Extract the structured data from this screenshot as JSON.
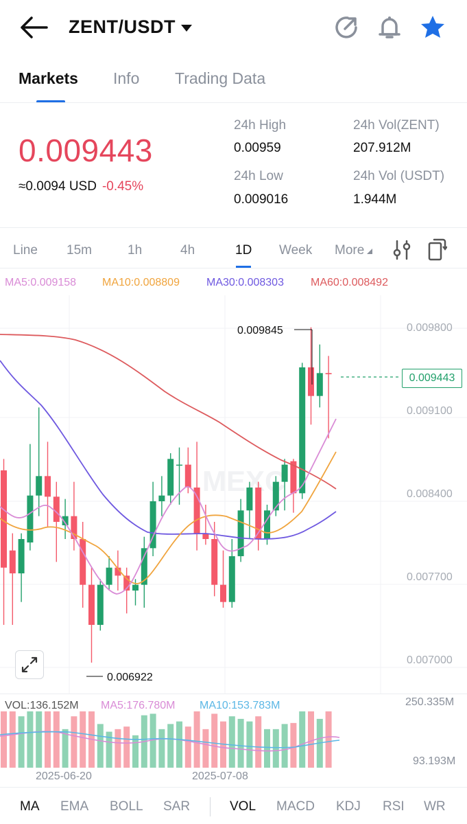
{
  "header": {
    "pair": "ZENT/USDT",
    "icons": [
      "back-arrow-icon",
      "share-icon",
      "bell-icon",
      "star-icon"
    ],
    "star_color": "#1f6fe5"
  },
  "tabs": [
    {
      "label": "Markets",
      "active": true
    },
    {
      "label": "Info",
      "active": false
    },
    {
      "label": "Trading Data",
      "active": false
    }
  ],
  "ticker": {
    "price": "0.009443",
    "usd": "≈0.0094 USD",
    "change": "-0.45%",
    "high_label": "24h High",
    "high": "0.00959",
    "low_label": "24h Low",
    "low": "0.009016",
    "vol_base_label": "24h Vol(ZENT)",
    "vol_base": "207.912M",
    "vol_quote_label": "24h Vol (USDT)",
    "vol_quote": "1.944M"
  },
  "timeframes": [
    "Line",
    "15m",
    "1h",
    "4h",
    "1D",
    "Week",
    "More"
  ],
  "active_timeframe": "1D",
  "ma_legend": {
    "ma5": "MA5:0.009158",
    "ma10": "MA10:0.008809",
    "ma30": "MA30:0.008303",
    "ma60": "MA60:0.008492"
  },
  "colors": {
    "up": "#22a06b",
    "down": "#f4596a",
    "ma5": "#d98bd6",
    "ma10": "#f0a43d",
    "ma30": "#6e58e0",
    "ma60": "#dd5a5d",
    "accent": "#1f6fe5"
  },
  "chart": {
    "price_axis": [
      "0.009800",
      "0.009100",
      "0.008400",
      "0.007700",
      "0.007000"
    ],
    "current_price": "0.009443",
    "max_label": "0.009845",
    "min_label": "0.006922",
    "watermark": "MEXC"
  },
  "chart_data": {
    "type": "candlestick",
    "ylim": [
      0.00665,
      0.01013
    ],
    "grid": true,
    "candles": [
      {
        "o": 0.0086,
        "h": 0.0087,
        "l": 0.00725,
        "c": 0.00775
      },
      {
        "o": 0.0079,
        "h": 0.00805,
        "l": 0.00725,
        "c": 0.0077
      },
      {
        "o": 0.0077,
        "h": 0.00805,
        "l": 0.00745,
        "c": 0.008
      },
      {
        "o": 0.00797,
        "h": 0.00883,
        "l": 0.0079,
        "c": 0.00838
      },
      {
        "o": 0.00838,
        "h": 0.00915,
        "l": 0.0082,
        "c": 0.00855
      },
      {
        "o": 0.00855,
        "h": 0.00885,
        "l": 0.0081,
        "c": 0.00837
      },
      {
        "o": 0.00837,
        "h": 0.0085,
        "l": 0.0078,
        "c": 0.00815
      },
      {
        "o": 0.00812,
        "h": 0.00835,
        "l": 0.008,
        "c": 0.0082
      },
      {
        "o": 0.0082,
        "h": 0.0085,
        "l": 0.0079,
        "c": 0.008
      },
      {
        "o": 0.008,
        "h": 0.00815,
        "l": 0.0074,
        "c": 0.0076
      },
      {
        "o": 0.0076,
        "h": 0.00775,
        "l": 0.00692,
        "c": 0.00725
      },
      {
        "o": 0.00725,
        "h": 0.00765,
        "l": 0.0072,
        "c": 0.0076
      },
      {
        "o": 0.0076,
        "h": 0.00785,
        "l": 0.00755,
        "c": 0.00775
      },
      {
        "o": 0.00775,
        "h": 0.0079,
        "l": 0.00755,
        "c": 0.00768
      },
      {
        "o": 0.00768,
        "h": 0.00775,
        "l": 0.00735,
        "c": 0.00755
      },
      {
        "o": 0.00755,
        "h": 0.00765,
        "l": 0.00742,
        "c": 0.0076
      },
      {
        "o": 0.0076,
        "h": 0.00802,
        "l": 0.0074,
        "c": 0.00792
      },
      {
        "o": 0.00792,
        "h": 0.0085,
        "l": 0.00785,
        "c": 0.00833
      },
      {
        "o": 0.00833,
        "h": 0.00855,
        "l": 0.0082,
        "c": 0.00838
      },
      {
        "o": 0.00838,
        "h": 0.00875,
        "l": 0.0083,
        "c": 0.0087
      },
      {
        "o": 0.00865,
        "h": 0.0088,
        "l": 0.0083,
        "c": 0.00865
      },
      {
        "o": 0.00865,
        "h": 0.0088,
        "l": 0.0084,
        "c": 0.00845
      },
      {
        "o": 0.00845,
        "h": 0.00885,
        "l": 0.0079,
        "c": 0.00805
      },
      {
        "o": 0.00805,
        "h": 0.0083,
        "l": 0.00795,
        "c": 0.008
      },
      {
        "o": 0.008,
        "h": 0.00815,
        "l": 0.0075,
        "c": 0.0076
      },
      {
        "o": 0.0076,
        "h": 0.0079,
        "l": 0.0074,
        "c": 0.00745
      },
      {
        "o": 0.00745,
        "h": 0.008,
        "l": 0.0074,
        "c": 0.00785
      },
      {
        "o": 0.00785,
        "h": 0.00835,
        "l": 0.0078,
        "c": 0.00825
      },
      {
        "o": 0.00825,
        "h": 0.0085,
        "l": 0.008,
        "c": 0.00845
      },
      {
        "o": 0.00845,
        "h": 0.0085,
        "l": 0.0079,
        "c": 0.008
      },
      {
        "o": 0.008,
        "h": 0.0083,
        "l": 0.00795,
        "c": 0.00825
      },
      {
        "o": 0.00825,
        "h": 0.00855,
        "l": 0.0082,
        "c": 0.0085
      },
      {
        "o": 0.0085,
        "h": 0.0087,
        "l": 0.00825,
        "c": 0.00865
      },
      {
        "o": 0.00868,
        "h": 0.0087,
        "l": 0.00823,
        "c": 0.0084
      },
      {
        "o": 0.0084,
        "h": 0.00954,
        "l": 0.00835,
        "c": 0.0095
      },
      {
        "o": 0.0095,
        "h": 0.00985,
        "l": 0.009,
        "c": 0.00925
      },
      {
        "o": 0.00925,
        "h": 0.0097,
        "l": 0.00915,
        "c": 0.00945
      },
      {
        "o": 0.00945,
        "h": 0.0096,
        "l": 0.00888,
        "c": 0.00944
      }
    ]
  },
  "volume": {
    "vol_label": "VOL:136.152M",
    "ma5_label": "MA5:176.780M",
    "ma10_label": "MA10:153.783M",
    "top_axis": "250.335M",
    "bottom_axis": "93.193M"
  },
  "dates": [
    "2025-06-20",
    "2025-07-08"
  ],
  "indicators_left": [
    "MA",
    "EMA",
    "BOLL",
    "SAR"
  ],
  "indicators_right": [
    "VOL",
    "MACD",
    "KDJ",
    "RSI",
    "WR"
  ]
}
